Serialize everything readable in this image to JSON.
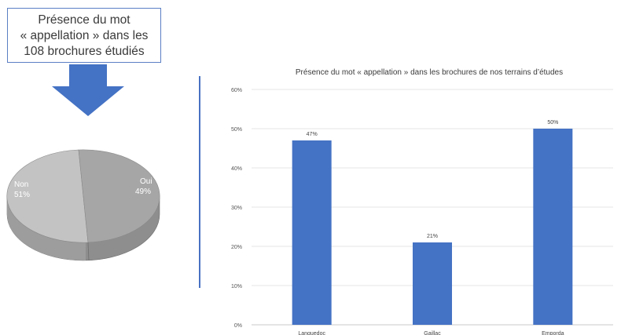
{
  "title_box": {
    "line1": "Présence du mot",
    "line2": "« appellation » dans les",
    "line3": "108 brochures étudiés"
  },
  "pie_data": {
    "type": "pie",
    "slices": [
      {
        "label": "Non",
        "value": 51,
        "value_label": "51%",
        "color": "#c2c2c2"
      },
      {
        "label": "Oui",
        "value": 49,
        "value_label": "49%",
        "color": "#a7a7a7"
      }
    ]
  },
  "chart_data": {
    "type": "bar",
    "title": "Présence du mot « appellation » dans les brochures de nos terrains d’études",
    "categories": [
      "Languedoc",
      "Gaillac",
      "Emporda"
    ],
    "values": [
      47,
      21,
      50
    ],
    "value_labels": [
      "47%",
      "21%",
      "50%"
    ],
    "ylim": [
      0,
      60
    ],
    "yticks": [
      "0%",
      "10%",
      "20%",
      "30%",
      "40%",
      "50%",
      "60%"
    ],
    "grid": true,
    "bar_color": "#4472c4",
    "arrow_color": "#4472c4"
  }
}
